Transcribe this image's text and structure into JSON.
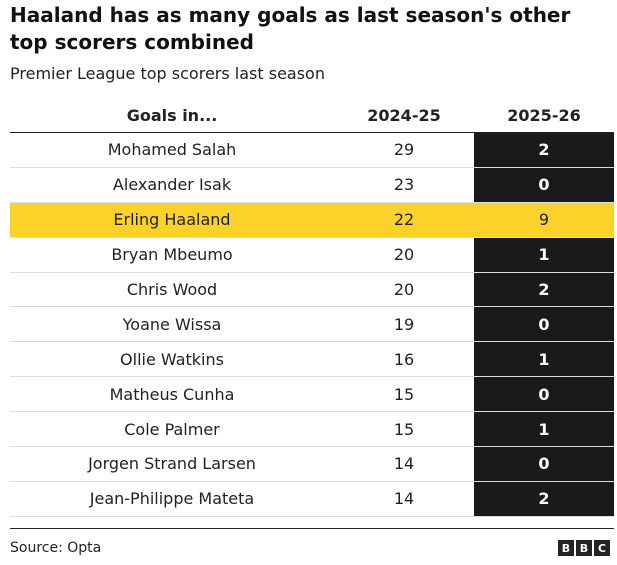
{
  "title": "Haaland has as many goals as last season's other top scorers combined",
  "subtitle": "Premier League top scorers last season",
  "source": "Source: Opta",
  "logo": [
    "B",
    "B",
    "C"
  ],
  "chart_data": {
    "type": "table",
    "columns": [
      "Goals in...",
      "2024-25",
      "2025-26"
    ],
    "highlight_row": "Erling Haaland",
    "colors": {
      "highlight": "#fcd22a",
      "dark_column": "#1a1a1a"
    },
    "rows": [
      {
        "name": "Mohamed Salah",
        "a": "29",
        "b": "2"
      },
      {
        "name": "Alexander Isak",
        "a": "23",
        "b": "0"
      },
      {
        "name": "Erling Haaland",
        "a": "22",
        "b": "9"
      },
      {
        "name": "Bryan Mbeumo",
        "a": "20",
        "b": "1"
      },
      {
        "name": "Chris Wood",
        "a": "20",
        "b": "2"
      },
      {
        "name": "Yoane Wissa",
        "a": "19",
        "b": "0"
      },
      {
        "name": "Ollie Watkins",
        "a": "16",
        "b": "1"
      },
      {
        "name": "Matheus Cunha",
        "a": "15",
        "b": "0"
      },
      {
        "name": "Cole Palmer",
        "a": "15",
        "b": "1"
      },
      {
        "name": "Jorgen Strand Larsen",
        "a": "14",
        "b": "0"
      },
      {
        "name": "Jean-Philippe Mateta",
        "a": "14",
        "b": "2"
      }
    ]
  }
}
